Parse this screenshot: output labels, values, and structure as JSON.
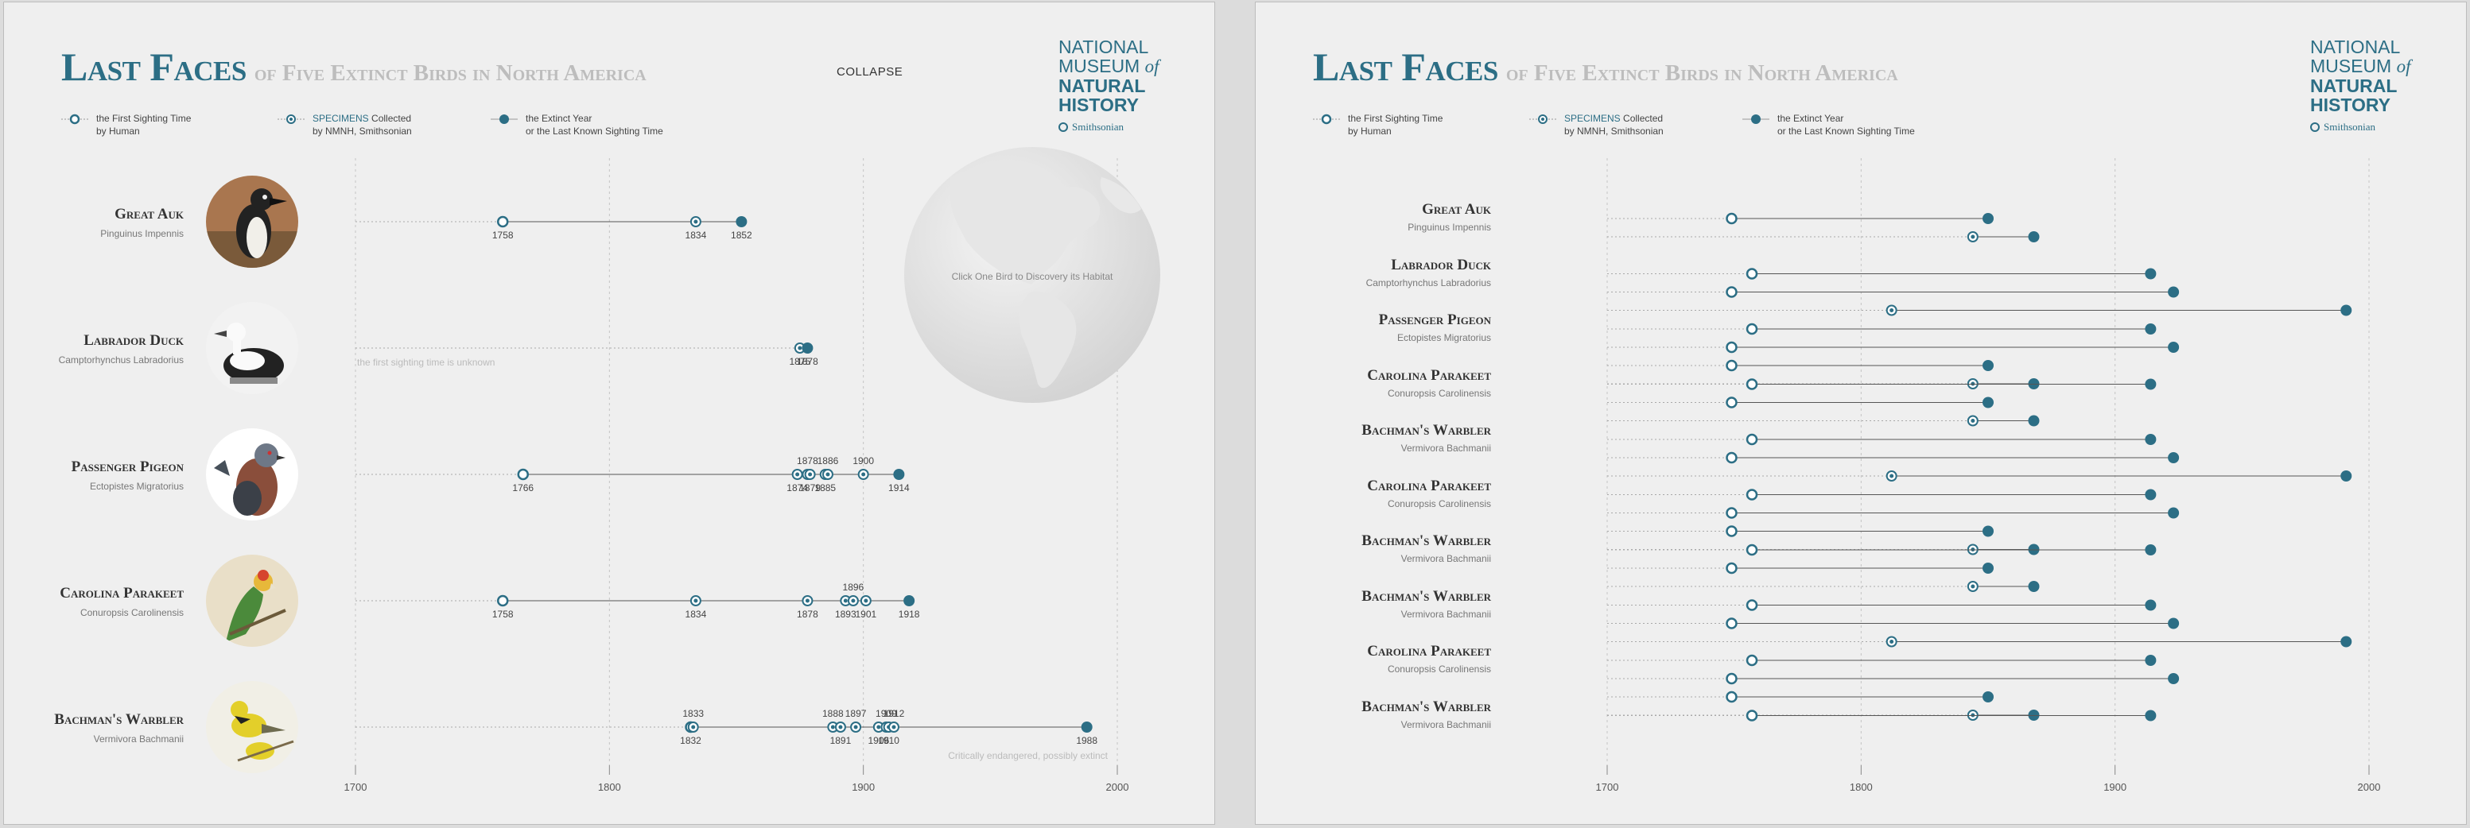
{
  "header": {
    "title_main": "Last Faces",
    "title_sub": "of Five Extinct Birds in North America",
    "collapse_label": "COLLAPSE"
  },
  "logo": {
    "line1": "NATIONAL",
    "line2": "MUSEUM",
    "line2_of": "of",
    "line3": "NATURAL",
    "line4": "HISTORY",
    "smithsonian": "Smithsonian"
  },
  "legend": {
    "first": {
      "line1": "the First Sighting Time",
      "line2": "by Human"
    },
    "specimens": {
      "highlight": "SPECIMENS",
      "line1_rest": " Collected",
      "line2": "by NMNH, Smithsonian"
    },
    "extinct": {
      "line1": "the Extinct Year",
      "line2": "or the Last Known Sighting Time"
    }
  },
  "globe": {
    "text": "Click One Bird to Discovery its Habitat"
  },
  "colors": {
    "accent": "#2c6e85",
    "grid": "#bbbbbb",
    "muted": "#bdbdbd"
  },
  "chart_data": [
    {
      "type": "timeline",
      "panel": "left",
      "x_ticks": [
        "1700",
        "1800",
        "1900",
        "2000"
      ],
      "xlim": [
        1700,
        2000
      ],
      "birds": [
        {
          "name": "Great Auk",
          "scientific": "Pinguinus Impennis",
          "icon": "great-auk-portrait",
          "first": 1758,
          "specimens": [
            1834
          ],
          "extinct": 1852,
          "note": "",
          "labels_above": [],
          "labels_below": [
            "1758",
            "1834",
            "1852"
          ]
        },
        {
          "name": "Labrador Duck",
          "scientific": "Camptorhynchus Labradorius",
          "icon": "labrador-duck-portrait",
          "first": null,
          "specimens": [
            1875
          ],
          "extinct": 1878,
          "note": "the first sighting time is unknown",
          "labels_above": [],
          "labels_below": [
            "1875",
            "1878"
          ]
        },
        {
          "name": "Passenger Pigeon",
          "scientific": "Ectopistes Migratorius",
          "icon": "passenger-pigeon-portrait",
          "first": 1766,
          "specimens": [
            1874,
            1878,
            1879,
            1885,
            1886,
            1900
          ],
          "extinct": 1914,
          "note": "",
          "labels_above": [
            "1878",
            "1886",
            "1900"
          ],
          "labels_below": [
            "1766",
            "1874",
            "1879",
            "1885",
            "1914"
          ]
        },
        {
          "name": "Carolina Parakeet",
          "scientific": "Conuropsis Carolinensis",
          "icon": "carolina-parakeet-portrait",
          "first": 1758,
          "specimens": [
            1834,
            1878,
            1893,
            1896,
            1901
          ],
          "extinct": 1918,
          "note": "",
          "labels_above": [
            "1896"
          ],
          "labels_below": [
            "1758",
            "1834",
            "1878",
            "1893",
            "1901",
            "1918"
          ]
        },
        {
          "name": "Bachman's Warbler",
          "scientific": "Vermivora Bachmanii",
          "icon": "bachmans-warbler-portrait",
          "first": 1832,
          "specimens": [
            1833,
            1888,
            1891,
            1897,
            1906,
            1909,
            1910,
            1912
          ],
          "extinct": 1988,
          "note": "Critically endangered, possibly extinct",
          "labels_above": [
            "1833",
            "1888",
            "1897",
            "1909",
            "1912"
          ],
          "labels_below": [
            "1832",
            "1891",
            "1906",
            "1910",
            "1988"
          ]
        }
      ]
    },
    {
      "type": "timeline",
      "panel": "right",
      "x_ticks": [
        "1700",
        "1800",
        "1900",
        "2000"
      ],
      "xlim": [
        1700,
        2000
      ],
      "rows": [
        {
          "name": "Great Auk",
          "scientific": "Pinguinus Impennis",
          "lines": [
            {
              "first": 1749,
              "extinct": 1850
            },
            {
              "specimen": 1844,
              "extinct": 1868
            }
          ]
        },
        {
          "name": "Labrador Duck",
          "scientific": "Camptorhynchus Labradorius",
          "lines": [
            {
              "first": 1757,
              "extinct": 1914
            },
            {
              "first": 1749,
              "extinct": 1923
            },
            {
              "specimen": 1812,
              "extinct": 1991
            }
          ]
        },
        {
          "name": "Passenger Pigeon",
          "scientific": "Ectopistes Migratorius",
          "lines": [
            {
              "first": 1757,
              "extinct": 1914
            },
            {
              "first": 1749,
              "extinct": 1923
            },
            {
              "first": 1749,
              "extinct": 1850
            },
            {
              "specimen": 1844,
              "extinct": 1868
            }
          ]
        },
        {
          "name": "Carolina Parakeet",
          "scientific": "Conuropsis Carolinensis",
          "lines": [
            {
              "first": 1757,
              "extinct": 1914
            },
            {
              "first": 1749,
              "extinct": 1850
            },
            {
              "specimen": 1844,
              "extinct": 1868
            }
          ]
        },
        {
          "name": "Bachman's Warbler",
          "scientific": "Vermivora Bachmanii",
          "lines": [
            {
              "first": 1757,
              "extinct": 1914
            },
            {
              "first": 1749,
              "extinct": 1923
            },
            {
              "specimen": 1812,
              "extinct": 1991
            }
          ]
        },
        {
          "name": "Carolina Parakeet",
          "scientific": "Conuropsis Carolinensis",
          "lines": [
            {
              "first": 1757,
              "extinct": 1914
            },
            {
              "first": 1749,
              "extinct": 1923
            },
            {
              "first": 1749,
              "extinct": 1850
            },
            {
              "specimen": 1844,
              "extinct": 1868
            }
          ]
        },
        {
          "name": "Bachman's Warbler",
          "scientific": "Vermivora Bachmanii",
          "lines": [
            {
              "first": 1757,
              "extinct": 1914
            },
            {
              "first": 1749,
              "extinct": 1850
            },
            {
              "specimen": 1844,
              "extinct": 1868
            }
          ]
        },
        {
          "name": "Bachman's Warbler",
          "scientific": "Vermivora Bachmanii",
          "lines": [
            {
              "first": 1757,
              "extinct": 1914
            },
            {
              "first": 1749,
              "extinct": 1923
            },
            {
              "specimen": 1812,
              "extinct": 1991
            }
          ]
        },
        {
          "name": "Carolina Parakeet",
          "scientific": "Conuropsis Carolinensis",
          "lines": [
            {
              "first": 1757,
              "extinct": 1914
            },
            {
              "first": 1749,
              "extinct": 1923
            },
            {
              "first": 1749,
              "extinct": 1850
            },
            {
              "specimen": 1844,
              "extinct": 1868
            }
          ]
        },
        {
          "name": "Bachman's Warbler",
          "scientific": "Vermivora Bachmanii",
          "lines": [
            {
              "first": 1757,
              "extinct": 1914
            }
          ]
        }
      ]
    }
  ]
}
